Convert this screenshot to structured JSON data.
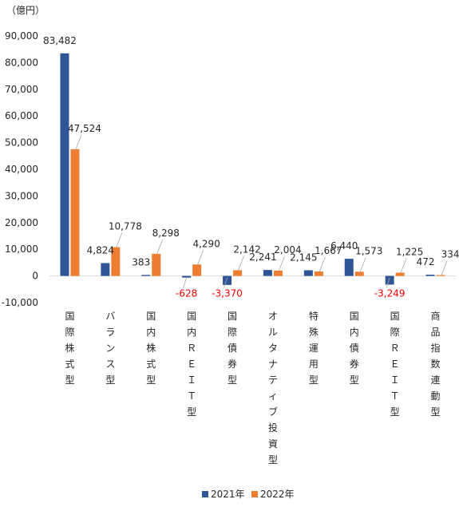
{
  "chart_data": {
    "type": "bar",
    "unit_label": "（億円）",
    "categories": [
      "国際株式型",
      "バランス型",
      "国内株式型",
      "国内ＲＥＩＴ型",
      "国際債券型",
      "オルタナティブ投資型",
      "特殊運用型",
      "国内債券型",
      "国際ＲＥＩＴ型",
      "商品指数連動型"
    ],
    "series": [
      {
        "name": "2021年",
        "color": "#2f5597",
        "values": [
          83482,
          4824,
          383,
          -628,
          -3370,
          2241,
          2145,
          6440,
          -3249,
          472
        ],
        "labels": [
          "83,482",
          "4,824",
          "383",
          "-628",
          "-3,370",
          "2,241",
          "2,145",
          "6,440",
          "-3,249",
          "472"
        ]
      },
      {
        "name": "2022年",
        "color": "#ed7d31",
        "values": [
          47524,
          10778,
          8298,
          4290,
          2142,
          2004,
          1667,
          1573,
          1225,
          334
        ],
        "labels": [
          "47,524",
          "10,778",
          "8,298",
          "4,290",
          "2,142",
          "2,004",
          "1,667",
          "1,573",
          "1,225",
          "334"
        ]
      }
    ],
    "ylim": [
      -10000,
      90000
    ],
    "yticks": [
      -10000,
      0,
      10000,
      20000,
      30000,
      40000,
      50000,
      60000,
      70000,
      80000,
      90000
    ],
    "ytick_labels": [
      "-10,000",
      "0",
      "10,000",
      "20,000",
      "30,000",
      "40,000",
      "50,000",
      "60,000",
      "70,000",
      "80,000",
      "90,000"
    ],
    "negative_tick_color": "#ff0000",
    "negative_label_color": "#ff0000",
    "grid": false,
    "legend_position": "bottom"
  }
}
